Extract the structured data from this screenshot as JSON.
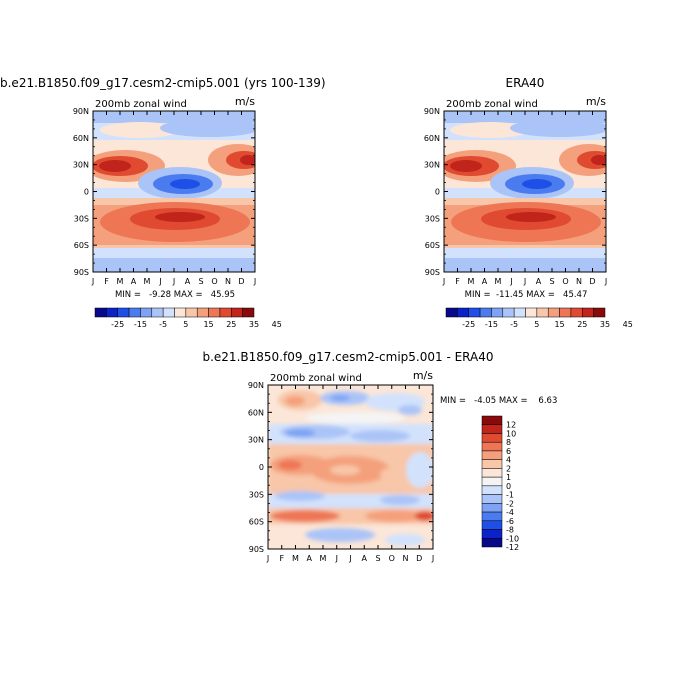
{
  "chart_data": [
    {
      "type": "heatmap",
      "title": "b.e21.B1850.f09_g17.cesm2-cmip5.001 (yrs 100-139)",
      "subtitle_left": "200mb zonal wind",
      "units": "m/s",
      "x_tick_labels": [
        "J",
        "F",
        "M",
        "A",
        "M",
        "J",
        "J",
        "A",
        "S",
        "O",
        "N",
        "D",
        "J"
      ],
      "y_tick_labels": [
        "90N",
        "60N",
        "30N",
        "0",
        "30S",
        "60S",
        "90S"
      ],
      "y_range": [
        -90,
        90
      ],
      "stats": {
        "min": "-9.28",
        "max": "45.95"
      },
      "stats_text": "MIN =   -9.28 MAX =   45.95",
      "colorbar_labels": [
        "-25",
        "-15",
        "-5",
        "5",
        "15",
        "25",
        "35",
        "45"
      ]
    },
    {
      "type": "heatmap",
      "title": "ERA40",
      "subtitle_left": "200mb zonal wind",
      "units": "m/s",
      "x_tick_labels": [
        "J",
        "F",
        "M",
        "A",
        "M",
        "J",
        "J",
        "A",
        "S",
        "O",
        "N",
        "D",
        "J"
      ],
      "y_tick_labels": [
        "90N",
        "60N",
        "30N",
        "0",
        "30S",
        "60S",
        "90S"
      ],
      "y_range": [
        -90,
        90
      ],
      "stats": {
        "min": "-11.45",
        "max": "45.47"
      },
      "stats_text": "MIN =  -11.45 MAX =   45.47",
      "colorbar_labels": [
        "-25",
        "-15",
        "-5",
        "5",
        "15",
        "25",
        "35",
        "45"
      ]
    },
    {
      "type": "heatmap",
      "title": "b.e21.B1850.f09_g17.cesm2-cmip5.001 - ERA40",
      "subtitle_left": "200mb zonal wind",
      "units": "m/s",
      "x_tick_labels": [
        "J",
        "F",
        "M",
        "A",
        "M",
        "J",
        "J",
        "A",
        "S",
        "O",
        "N",
        "D",
        "J"
      ],
      "y_tick_labels": [
        "90N",
        "60N",
        "30N",
        "0",
        "30S",
        "60S",
        "90S"
      ],
      "y_range": [
        -90,
        90
      ],
      "stats": {
        "min": "-4.05",
        "max": "6.63"
      },
      "stats_text": "MIN =   -4.05 MAX =    6.63",
      "colorbar_labels": [
        "12",
        "10",
        "8",
        "6",
        "4",
        "2",
        "1",
        "0",
        "-1",
        "-2",
        "-4",
        "-6",
        "-8",
        "-10",
        "-12"
      ]
    }
  ],
  "colors": {
    "main_scale": [
      "#08088a",
      "#0a22c8",
      "#1e50e8",
      "#4a7cf0",
      "#7ea2f4",
      "#aac4f8",
      "#d2e2fc",
      "#fbe6d8",
      "#f8c6a8",
      "#f4a07c",
      "#ee7654",
      "#e04a30",
      "#c0241a",
      "#880a0a"
    ],
    "diff_scale": [
      "#880a0a",
      "#c0241a",
      "#e04a30",
      "#ee7654",
      "#f4a07c",
      "#f8c6a8",
      "#fbe6d8",
      "#f4f4f4",
      "#d2e2fc",
      "#aac4f8",
      "#7ea2f4",
      "#4a7cf0",
      "#1e50e8",
      "#0a22c8",
      "#08088a"
    ]
  }
}
